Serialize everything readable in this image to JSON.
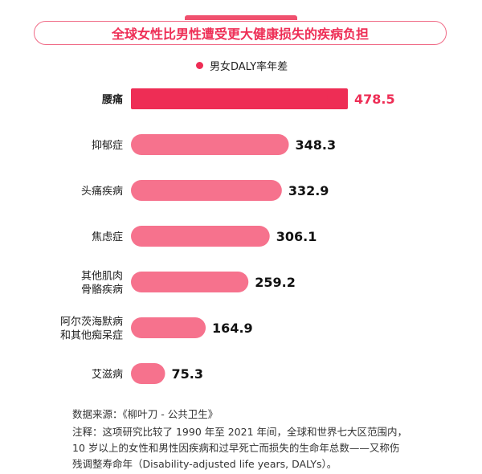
{
  "title": "全球女性比男性遭受更大健康损失的疾病负担",
  "legend": {
    "label": "男女DALY率年差",
    "color": "#ee2d55"
  },
  "chart_data": {
    "type": "bar",
    "orientation": "horizontal",
    "categories": [
      [
        "腰痛"
      ],
      [
        "抑郁症"
      ],
      [
        "头痛疾病"
      ],
      [
        "焦虑症"
      ],
      [
        "其他肌肉",
        "骨骼疾病"
      ],
      [
        "阿尔茨海默病",
        "和其他痴呆症"
      ],
      [
        "艾滋病"
      ]
    ],
    "values": [
      478.5,
      348.3,
      332.9,
      306.1,
      259.2,
      164.9,
      75.3
    ],
    "value_labels": [
      "478.5",
      "348.3",
      "332.9",
      "306.1",
      "259.2",
      "164.9",
      "75.3"
    ],
    "highlight_index": 0,
    "colors": {
      "highlight": "#ee2d55",
      "normal": "#f6728d",
      "highlight_label": "#ee2d55",
      "normal_label": "#111111"
    },
    "xlim": [
      0,
      478.5
    ]
  },
  "source": "数据来源：《柳叶刀 - 公共卫生》",
  "note_lines": [
    "注释：这项研究比较了 1990 年至 2021 年间，全球和世界七大区范围内，",
    "10 岁以上的女性和男性因疾病和过早死亡而损失的生命年总数——又称伤",
    "残调整寿命年（Disability-adjusted life years, DALYs）。"
  ]
}
